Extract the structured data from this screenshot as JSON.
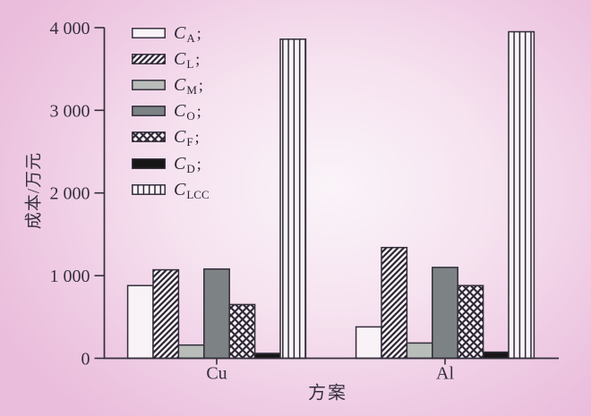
{
  "chart_data": {
    "type": "bar",
    "title": "",
    "xlabel": "方案",
    "ylabel": "成本/万元",
    "categories": [
      "Cu",
      "Al"
    ],
    "series": [
      {
        "name": "C_A",
        "legend_main": "C",
        "legend_sub": "A",
        "legend_suffix": ";",
        "pattern": "plain",
        "values": [
          880,
          380
        ]
      },
      {
        "name": "C_L",
        "legend_main": "C",
        "legend_sub": "L",
        "legend_suffix": ";",
        "pattern": "hatch",
        "values": [
          1070,
          1340
        ]
      },
      {
        "name": "C_M",
        "legend_main": "C",
        "legend_sub": "M",
        "legend_suffix": ";",
        "pattern": "solid",
        "color": "#b9bdb9",
        "values": [
          160,
          185
        ]
      },
      {
        "name": "C_O",
        "legend_main": "C",
        "legend_sub": "O",
        "legend_suffix": ";",
        "pattern": "solid",
        "color": "#7d8284",
        "values": [
          1080,
          1100
        ]
      },
      {
        "name": "C_F",
        "legend_main": "C",
        "legend_sub": "F",
        "legend_suffix": ";",
        "pattern": "cross",
        "values": [
          650,
          880
        ]
      },
      {
        "name": "C_D",
        "legend_main": "C",
        "legend_sub": "D",
        "legend_suffix": ";",
        "pattern": "solid",
        "color": "#161616",
        "values": [
          60,
          75
        ]
      },
      {
        "name": "C_LCC",
        "legend_main": "C",
        "legend_sub": "LCC",
        "legend_suffix": "",
        "pattern": "vlines",
        "values": [
          3860,
          3950
        ]
      }
    ],
    "ylim": [
      0,
      4000
    ],
    "yticks": [
      {
        "value": 0,
        "label": "0"
      },
      {
        "value": 1000,
        "label": "1 000"
      },
      {
        "value": 2000,
        "label": "2 000"
      },
      {
        "value": 3000,
        "label": "3 000"
      },
      {
        "value": 4000,
        "label": "4 000"
      }
    ],
    "legend_position": "upper-left",
    "grid": false
  },
  "colors": {
    "background_center": "#faf4f9",
    "background_edge": "#eabddc",
    "ink": "#352f3d",
    "bar_fill_white": "#f9f3f8",
    "pattern_line": "#2b2533",
    "bar_stroke": "#332d3b"
  }
}
